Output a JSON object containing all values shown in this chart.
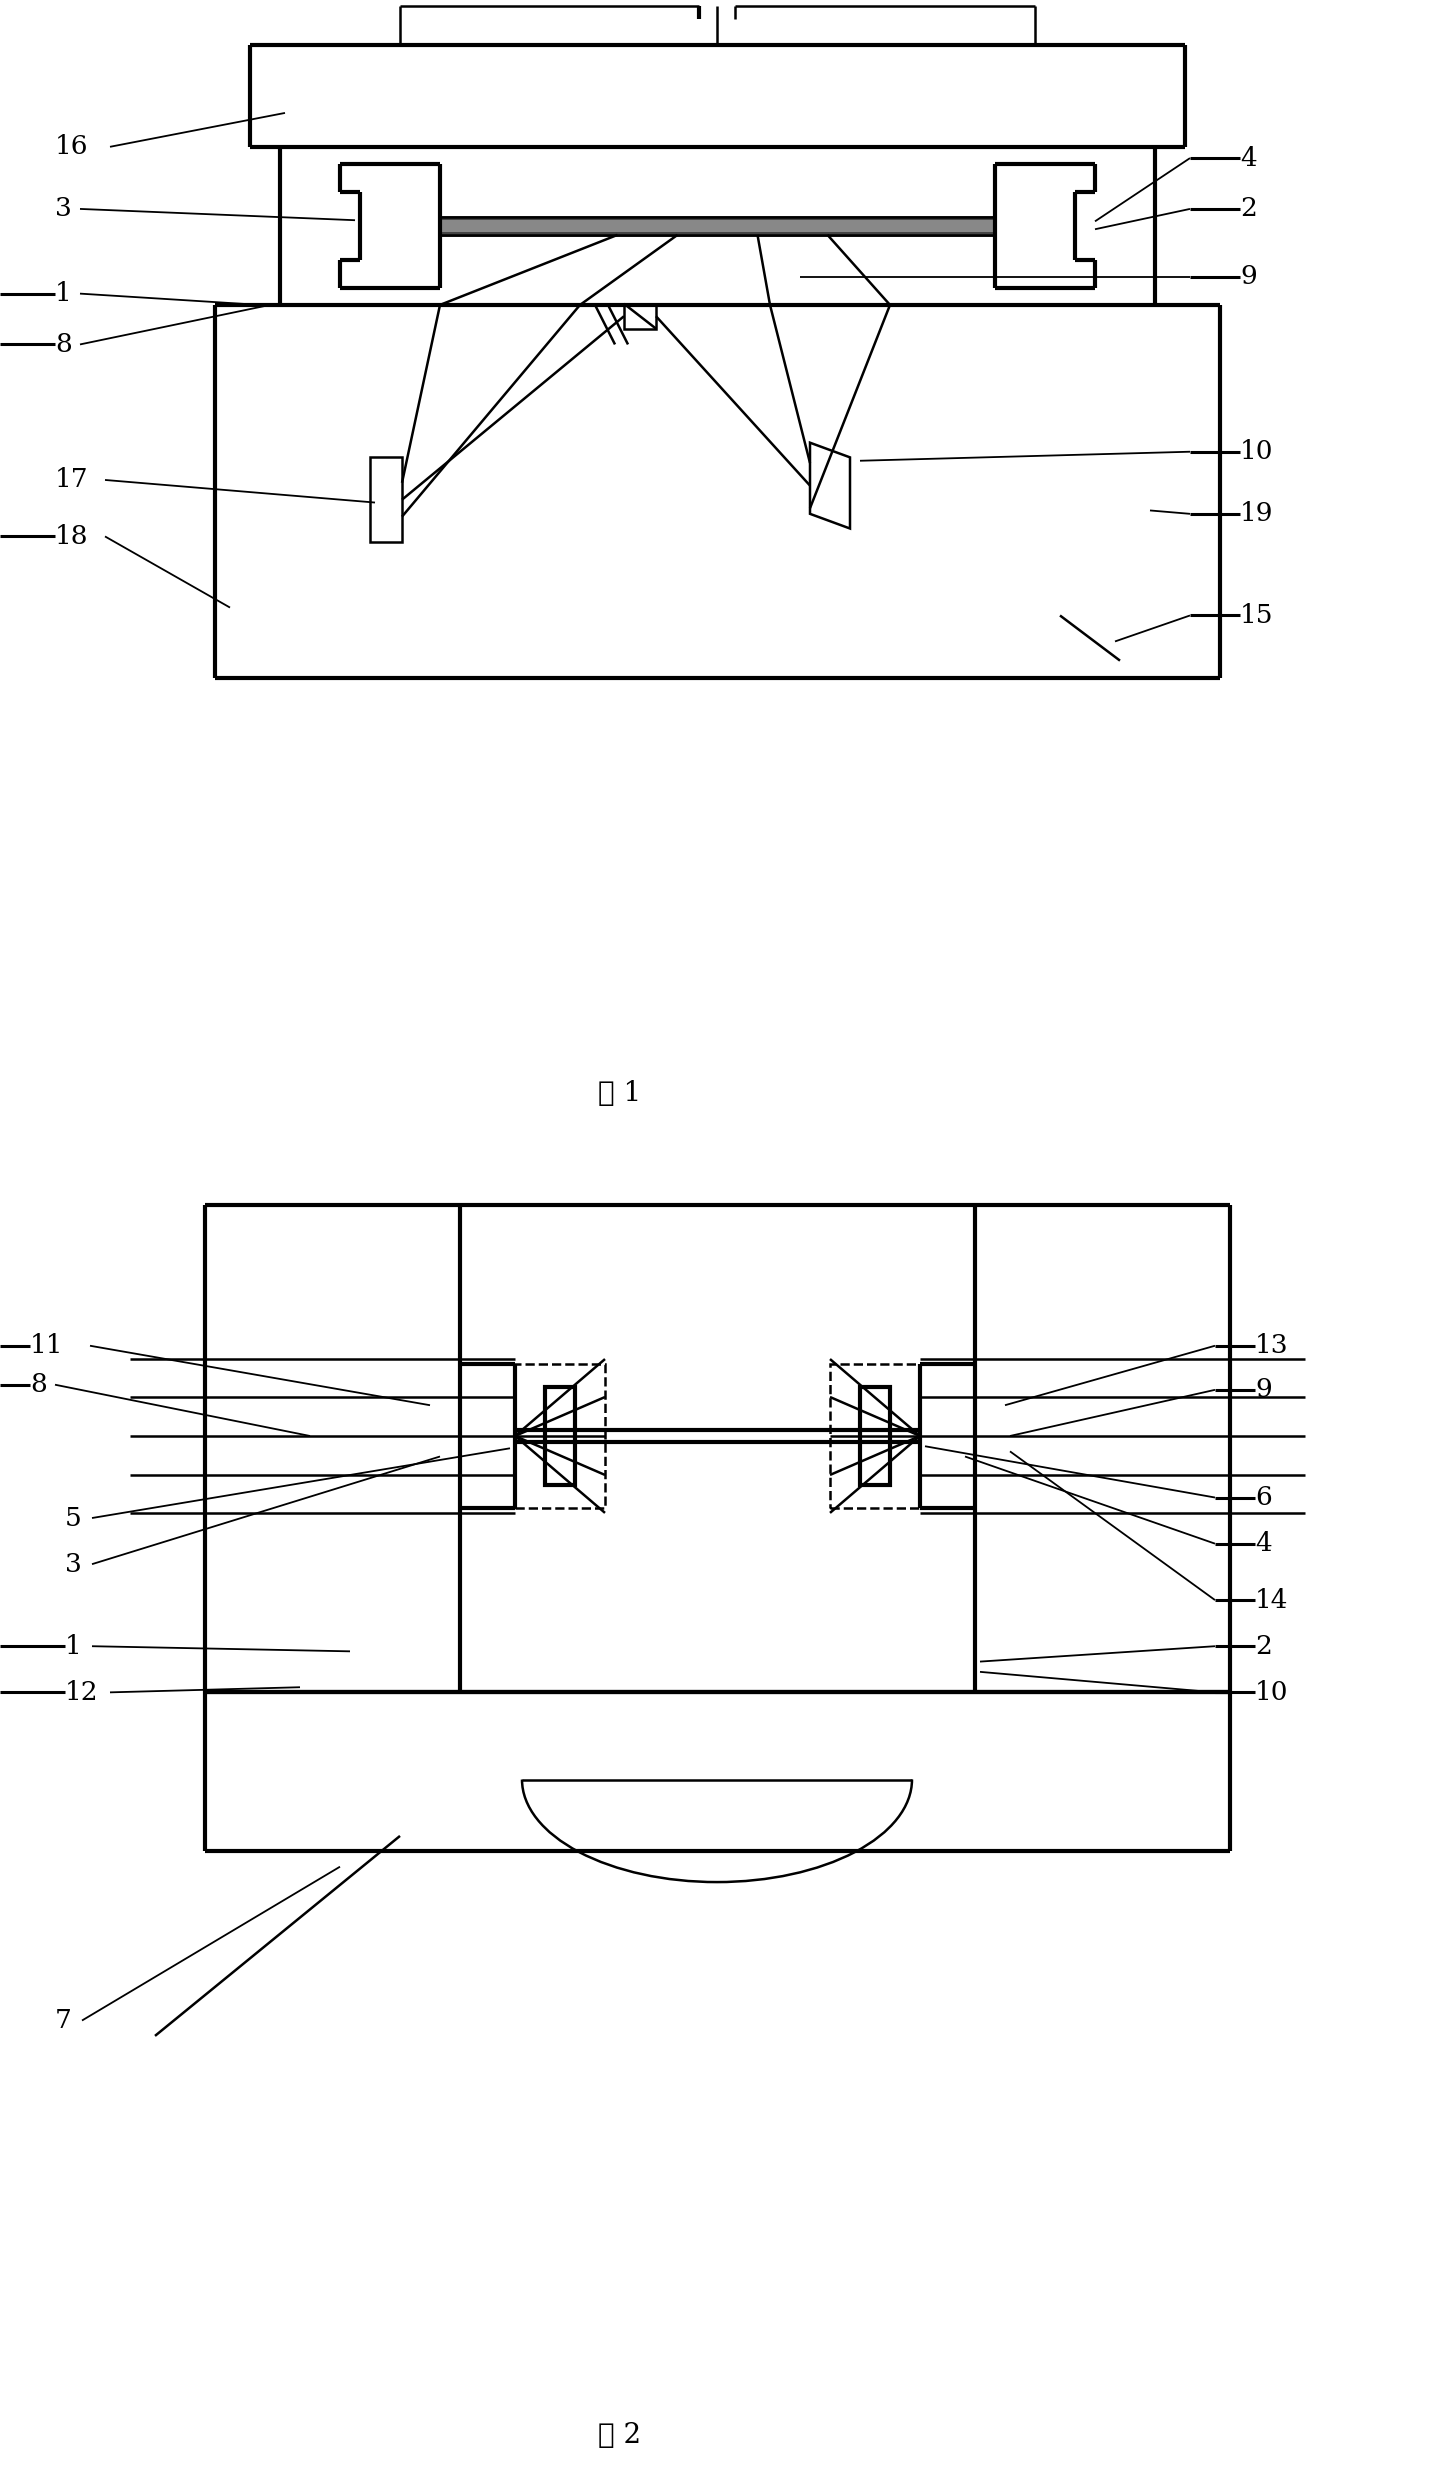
{
  "fig_width": 14.35,
  "fig_height": 24.82,
  "bg_color": "#ffffff",
  "lw": 1.8,
  "tlw": 3.0,
  "fig1_caption": "图 1",
  "fig2_caption": "图 2"
}
